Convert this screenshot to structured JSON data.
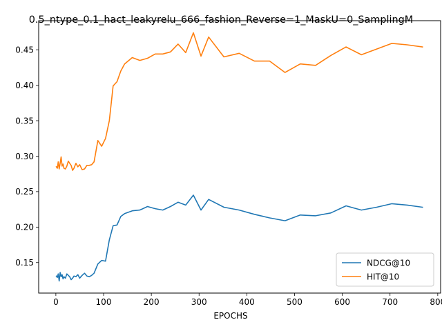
{
  "chart_data": {
    "type": "line",
    "title": "0.5_ntype_0.1_hact_leakyrelu_666_fashion_Reverse=1_MaskU=0_SamplingM",
    "xlabel": "EPOCHS",
    "ylabel": "",
    "xlim": [
      -36,
      806
    ],
    "ylim": [
      0.107,
      0.491
    ],
    "xticks": [
      0,
      100,
      200,
      300,
      400,
      500,
      600,
      700,
      800
    ],
    "yticks": [
      0.15,
      0.2,
      0.25,
      0.3,
      0.35,
      0.4,
      0.45
    ],
    "grid": false,
    "legend_position": "lower-right",
    "series": [
      {
        "name": "NDCG@10",
        "color": "#1f77b4",
        "x": [
          1,
          3,
          5,
          7,
          9,
          11,
          13,
          15,
          17,
          20,
          23,
          26,
          29,
          32,
          35,
          38,
          42,
          46,
          50,
          55,
          60,
          65,
          70,
          75,
          80,
          88,
          96,
          104,
          112,
          120,
          128,
          136,
          144,
          160,
          176,
          192,
          208,
          224,
          240,
          256,
          272,
          288,
          304,
          320,
          352,
          384,
          416,
          448,
          480,
          512,
          544,
          576,
          608,
          640,
          672,
          704,
          736,
          768
        ],
        "y": [
          0.131,
          0.129,
          0.134,
          0.124,
          0.136,
          0.13,
          0.133,
          0.127,
          0.13,
          0.128,
          0.134,
          0.132,
          0.13,
          0.126,
          0.128,
          0.131,
          0.13,
          0.133,
          0.128,
          0.132,
          0.135,
          0.131,
          0.13,
          0.132,
          0.135,
          0.148,
          0.153,
          0.152,
          0.182,
          0.202,
          0.203,
          0.215,
          0.219,
          0.223,
          0.224,
          0.229,
          0.226,
          0.224,
          0.229,
          0.235,
          0.231,
          0.245,
          0.224,
          0.239,
          0.228,
          0.224,
          0.218,
          0.213,
          0.209,
          0.217,
          0.216,
          0.22,
          0.23,
          0.224,
          0.228,
          0.233,
          0.231,
          0.228
        ]
      },
      {
        "name": "HIT@10",
        "color": "#ff7f0e",
        "x": [
          1,
          3,
          5,
          7,
          9,
          11,
          13,
          15,
          17,
          20,
          23,
          26,
          29,
          32,
          35,
          38,
          42,
          46,
          50,
          55,
          60,
          65,
          70,
          75,
          80,
          88,
          96,
          104,
          112,
          120,
          128,
          136,
          144,
          160,
          176,
          192,
          208,
          224,
          240,
          256,
          272,
          288,
          304,
          320,
          352,
          384,
          416,
          448,
          480,
          512,
          544,
          576,
          608,
          640,
          672,
          704,
          736,
          768
        ],
        "y": [
          0.285,
          0.283,
          0.292,
          0.282,
          0.29,
          0.299,
          0.286,
          0.289,
          0.283,
          0.282,
          0.286,
          0.293,
          0.29,
          0.287,
          0.28,
          0.283,
          0.29,
          0.285,
          0.288,
          0.281,
          0.282,
          0.287,
          0.287,
          0.288,
          0.292,
          0.322,
          0.314,
          0.325,
          0.35,
          0.399,
          0.405,
          0.42,
          0.43,
          0.439,
          0.435,
          0.438,
          0.444,
          0.444,
          0.447,
          0.458,
          0.446,
          0.474,
          0.441,
          0.468,
          0.44,
          0.445,
          0.434,
          0.434,
          0.418,
          0.43,
          0.428,
          0.442,
          0.454,
          0.443,
          0.451,
          0.459,
          0.457,
          0.454
        ]
      }
    ]
  }
}
